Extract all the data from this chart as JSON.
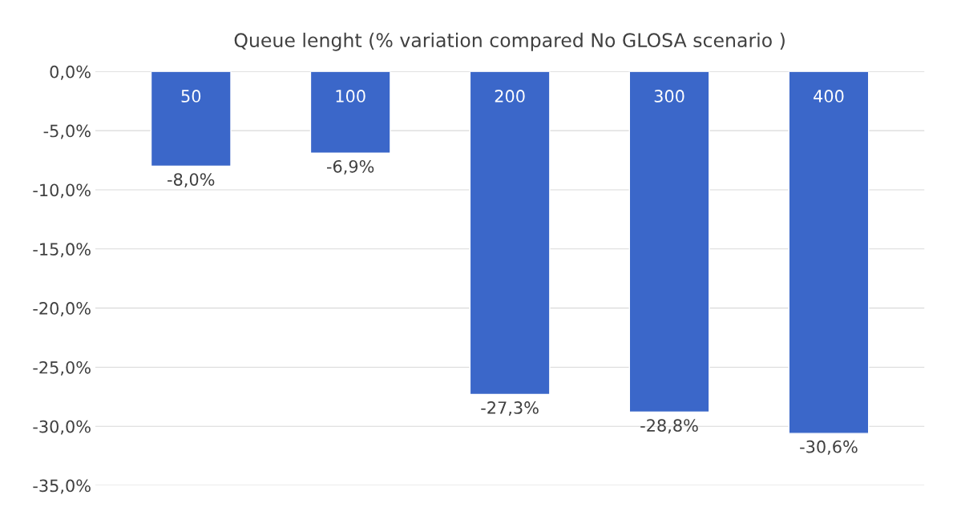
{
  "chart_data": {
    "type": "bar",
    "title": "Queue lenght (% variation compared No GLOSA scenario )",
    "categories": [
      "50",
      "100",
      "200",
      "300",
      "400"
    ],
    "values": [
      -8.0,
      -6.9,
      -27.3,
      -28.8,
      -30.6
    ],
    "value_labels": [
      "-8,0%",
      "-6,9%",
      "-27,3%",
      "-28,8%",
      "-30,6%"
    ],
    "color": "#3b67c9",
    "ylim": [
      -35,
      0
    ],
    "yticks": [
      {
        "value": 0,
        "label": "0,0%"
      },
      {
        "value": -5,
        "label": "-5,0%"
      },
      {
        "value": -10,
        "label": "-10,0%"
      },
      {
        "value": -15,
        "label": "-15,0%"
      },
      {
        "value": -20,
        "label": "-20,0%"
      },
      {
        "value": -25,
        "label": "-25,0%"
      },
      {
        "value": -30,
        "label": "-30,0%"
      },
      {
        "value": -35,
        "label": "-35,0%"
      }
    ],
    "grid": "y"
  }
}
